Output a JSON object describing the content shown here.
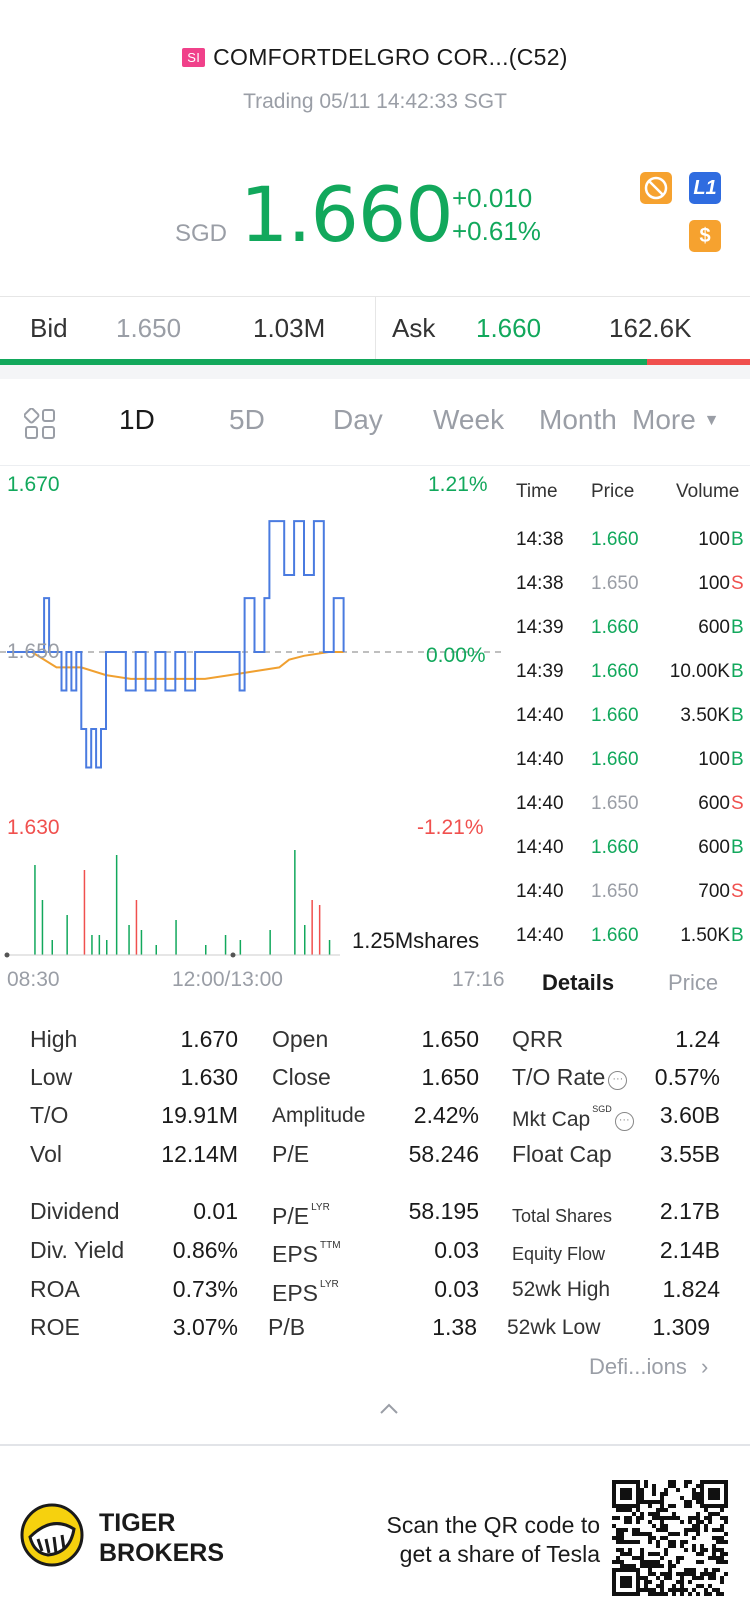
{
  "header": {
    "market_badge": "SI",
    "title": "COMFORTDELGRO COR...(C52)",
    "status": "Trading 05/11 14:42:33 SGT"
  },
  "quote": {
    "currency": "SGD",
    "price": "1.660",
    "change": "+0.010",
    "change_pct": "+0.61%"
  },
  "icons": {
    "icon1": "no-short-icon",
    "icon2_label": "L1",
    "icon3_label": "$"
  },
  "bid_ask": {
    "bid_label": "Bid",
    "bid_price": "1.650",
    "bid_size": "1.03M",
    "ask_label": "Ask",
    "ask_price": "1.660",
    "ask_size": "162.6K",
    "bid_fraction": 0.863
  },
  "tabs": [
    "1D",
    "5D",
    "Day",
    "Week",
    "Month",
    "More"
  ],
  "chart": {
    "y_high": "1.670",
    "y_low": "1.630",
    "y_mid": "1.650",
    "pct_high": "1.21%",
    "pct_mid": "0.00%",
    "pct_low": "-1.21%",
    "volume_label": "1.25Mshares",
    "x_start": "08:30",
    "x_mid": "12:00/13:00",
    "x_end": "17:16"
  },
  "chart_data": {
    "type": "line",
    "ylim": [
      1.63,
      1.67
    ],
    "series": [
      {
        "x": [
          0,
          0.07,
          0.075,
          0.08,
          0.085,
          0.09,
          0.1,
          0.11,
          0.12,
          0.13,
          0.14,
          0.15,
          0.16,
          0.17,
          0.18,
          0.19,
          0.2,
          0.22,
          0.24,
          0.26,
          0.28,
          0.3,
          0.32,
          0.34,
          0.36,
          0.38,
          0.4,
          0.42,
          0.44,
          0.46,
          0.47,
          0.48,
          0.5,
          0.52,
          0.53,
          0.54,
          0.56,
          0.58,
          0.6,
          0.62,
          0.64,
          0.66,
          0.68
        ],
        "values": [
          1.65,
          1.65,
          1.657,
          1.657,
          1.65,
          1.65,
          1.65,
          1.645,
          1.65,
          1.645,
          1.65,
          1.64,
          1.635,
          1.64,
          1.635,
          1.64,
          1.65,
          1.65,
          1.645,
          1.65,
          1.645,
          1.65,
          1.645,
          1.65,
          1.645,
          1.65,
          1.65,
          1.65,
          1.65,
          1.65,
          1.645,
          1.657,
          1.65,
          1.657,
          1.667,
          1.667,
          1.66,
          1.667,
          1.66,
          1.667,
          1.65,
          1.657,
          1.65
        ]
      },
      {
        "x": [
          0,
          0.05,
          0.1,
          0.15,
          0.2,
          0.25,
          0.3,
          0.35,
          0.4,
          0.45,
          0.5,
          0.55,
          0.57,
          0.6,
          0.65,
          0.68
        ],
        "values": [
          1.65,
          1.65,
          1.648,
          1.648,
          1.647,
          1.6465,
          1.6465,
          1.6465,
          1.6465,
          1.647,
          1.6475,
          1.648,
          1.649,
          1.6495,
          1.65,
          1.65
        ]
      }
    ],
    "volume_bars": [
      {
        "x": 0.055,
        "v": 0.9,
        "side": "b"
      },
      {
        "x": 0.07,
        "v": 0.55,
        "side": "b"
      },
      {
        "x": 0.09,
        "v": 0.15,
        "side": "b"
      },
      {
        "x": 0.12,
        "v": 0.4,
        "side": "b"
      },
      {
        "x": 0.155,
        "v": 0.85,
        "side": "s"
      },
      {
        "x": 0.17,
        "v": 0.2,
        "side": "b"
      },
      {
        "x": 0.185,
        "v": 0.2,
        "side": "b"
      },
      {
        "x": 0.2,
        "v": 0.15,
        "side": "b"
      },
      {
        "x": 0.22,
        "v": 1.0,
        "side": "b"
      },
      {
        "x": 0.245,
        "v": 0.3,
        "side": "b"
      },
      {
        "x": 0.26,
        "v": 0.55,
        "side": "s"
      },
      {
        "x": 0.27,
        "v": 0.25,
        "side": "b"
      },
      {
        "x": 0.3,
        "v": 0.1,
        "side": "b"
      },
      {
        "x": 0.34,
        "v": 0.35,
        "side": "b"
      },
      {
        "x": 0.4,
        "v": 0.1,
        "side": "b"
      },
      {
        "x": 0.44,
        "v": 0.2,
        "side": "b"
      },
      {
        "x": 0.47,
        "v": 0.15,
        "side": "b"
      },
      {
        "x": 0.53,
        "v": 0.25,
        "side": "b"
      },
      {
        "x": 0.58,
        "v": 1.05,
        "side": "b"
      },
      {
        "x": 0.6,
        "v": 0.3,
        "side": "b"
      },
      {
        "x": 0.615,
        "v": 0.55,
        "side": "s"
      },
      {
        "x": 0.63,
        "v": 0.5,
        "side": "s"
      },
      {
        "x": 0.65,
        "v": 0.15,
        "side": "b"
      }
    ]
  },
  "ticks": {
    "headers": [
      "Time",
      "Price",
      "Volume"
    ],
    "rows": [
      {
        "time": "14:38",
        "price": "1.660",
        "vol": "100",
        "side": "B"
      },
      {
        "time": "14:38",
        "price": "1.650",
        "vol": "100",
        "side": "S"
      },
      {
        "time": "14:39",
        "price": "1.660",
        "vol": "600",
        "side": "B"
      },
      {
        "time": "14:39",
        "price": "1.660",
        "vol": "10.00K",
        "side": "B"
      },
      {
        "time": "14:40",
        "price": "1.660",
        "vol": "3.50K",
        "side": "B"
      },
      {
        "time": "14:40",
        "price": "1.660",
        "vol": "100",
        "side": "B"
      },
      {
        "time": "14:40",
        "price": "1.650",
        "vol": "600",
        "side": "S"
      },
      {
        "time": "14:40",
        "price": "1.660",
        "vol": "600",
        "side": "B"
      },
      {
        "time": "14:40",
        "price": "1.650",
        "vol": "700",
        "side": "S"
      },
      {
        "time": "14:40",
        "price": "1.660",
        "vol": "1.50K",
        "side": "B"
      }
    ]
  },
  "detail_tabs": {
    "details": "Details",
    "price": "Price"
  },
  "stats": {
    "high_l": "High",
    "high_v": "1.670",
    "low_l": "Low",
    "low_v": "1.630",
    "to_l": "T/O",
    "to_v": "19.91M",
    "vol_l": "Vol",
    "vol_v": "12.14M",
    "open_l": "Open",
    "open_v": "1.650",
    "close_l": "Close",
    "close_v": "1.650",
    "amp_l": "Amplitude",
    "amp_v": "2.42%",
    "pe_l": "P/E",
    "pe_v": "58.246",
    "qrr_l": "QRR",
    "qrr_v": "1.24",
    "tor_l": "T/O Rate",
    "tor_v": "0.57%",
    "mcap_l": "Mkt Cap",
    "mcap_sup": "SGD",
    "mcap_v": "3.60B",
    "fcap_l": "Float Cap",
    "fcap_v": "3.55B",
    "div_l": "Dividend",
    "div_v": "0.01",
    "dy_l": "Div. Yield",
    "dy_v": "0.86%",
    "roa_l": "ROA",
    "roa_v": "0.73%",
    "roe_l": "ROE",
    "roe_v": "3.07%",
    "pelyr_l": "P/E",
    "pelyr_sup": "LYR",
    "pelyr_v": "58.195",
    "epsttm_l": "EPS",
    "epsttm_sup": "TTM",
    "epsttm_v": "0.03",
    "epslyr_l": "EPS",
    "epslyr_sup": "LYR",
    "epslyr_v": "0.03",
    "pb_l": "P/B",
    "pb_v": "1.38",
    "ts_l": "Total Shares",
    "ts_v": "2.17B",
    "ef_l": "Equity Flow",
    "ef_v": "2.14B",
    "wh_l": "52wk High",
    "wh_v": "1.824",
    "wl_l": "52wk Low",
    "wl_v": "1.309",
    "defs": "Defi...ions"
  },
  "footer": {
    "brand1": "TIGER",
    "brand2": "BROKERS",
    "promo1": "Scan the QR code to",
    "promo2": "get a share of Tesla"
  },
  "colors": {
    "up": "#12a85c",
    "down": "#f0504e",
    "line": "#4a7be0",
    "avg": "#f0a030"
  }
}
